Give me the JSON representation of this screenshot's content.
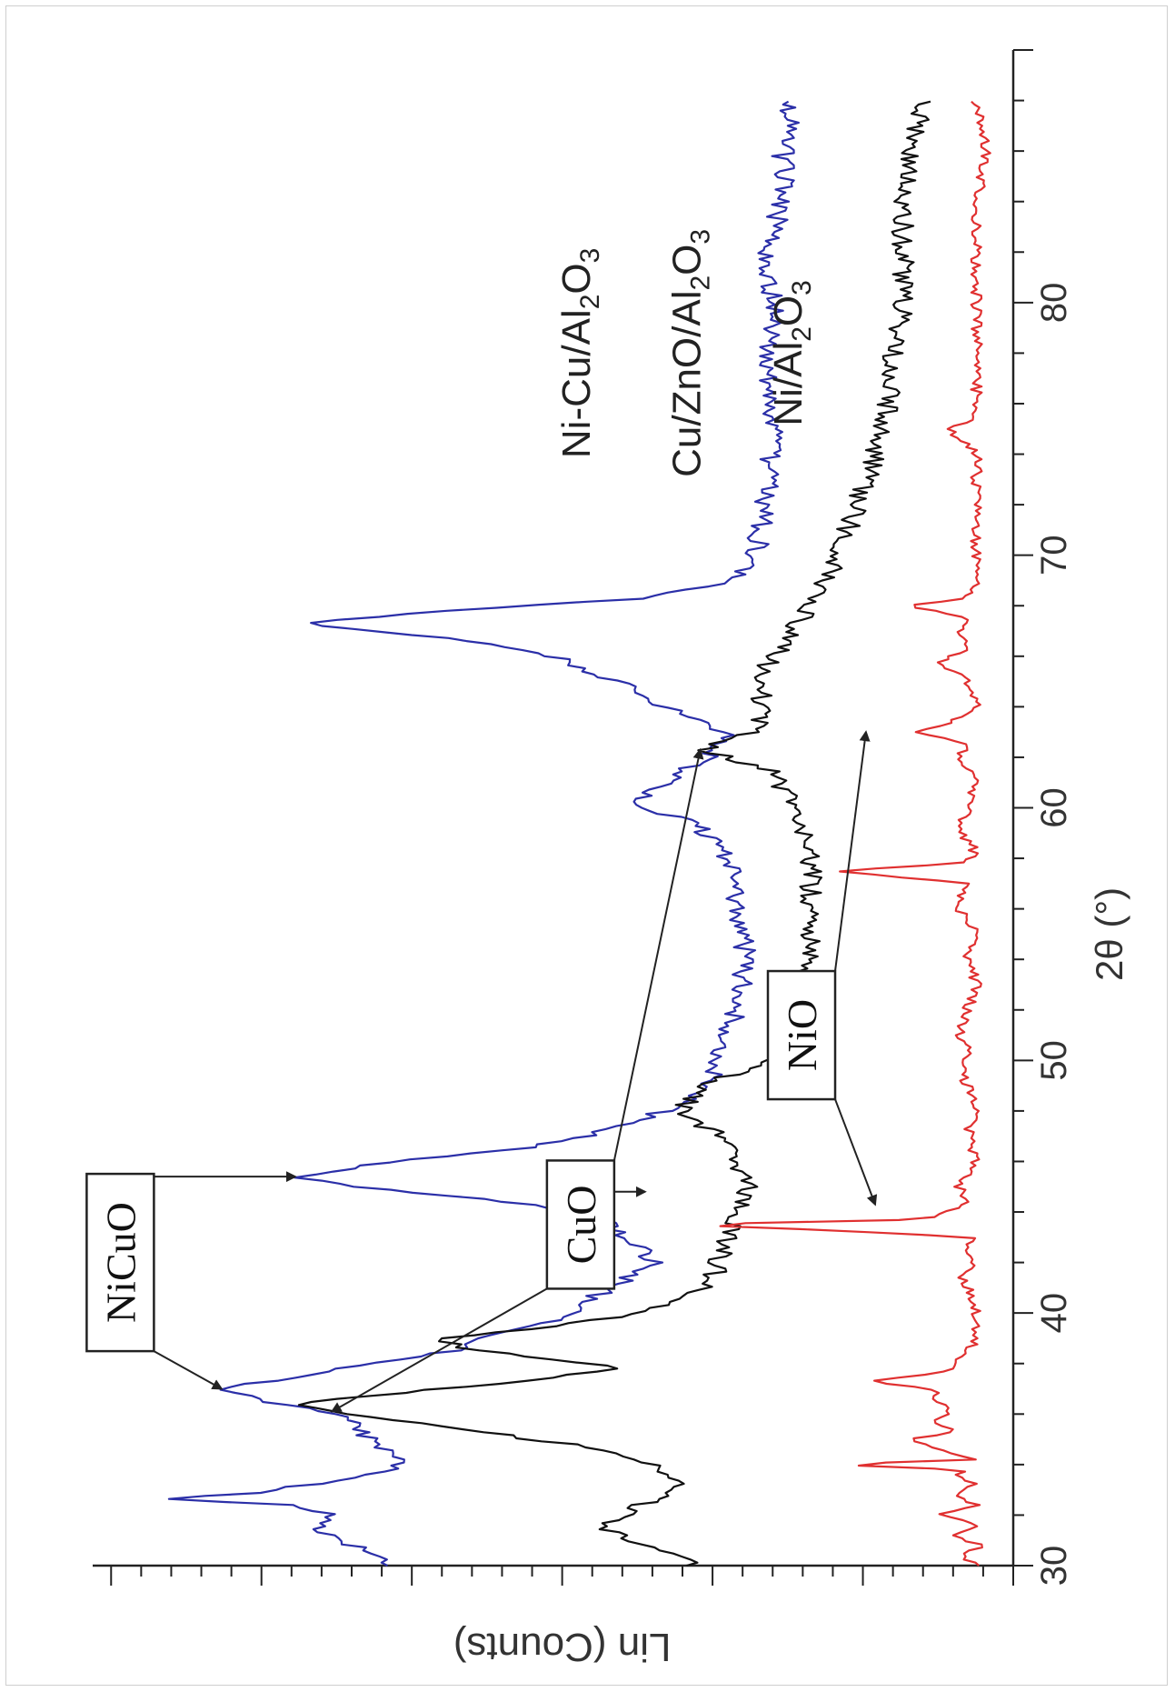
{
  "chart_data": {
    "type": "line",
    "orientation": "rotated-90-clockwise",
    "xlabel": "2θ (°)",
    "ylabel": "Lin (Counts)",
    "xlim": [
      30,
      90
    ],
    "x_ticks": [
      30,
      40,
      50,
      60,
      70,
      80
    ],
    "grid": false,
    "series": [
      {
        "name": "Ni-Cu/Al2O3",
        "color": "#2b2fa8",
        "points": [
          [
            30,
            0.68
          ],
          [
            30.5,
            0.7
          ],
          [
            31,
            0.73
          ],
          [
            31.5,
            0.76
          ],
          [
            32,
            0.74
          ],
          [
            32.4,
            0.79
          ],
          [
            32.6,
            0.92
          ],
          [
            32.9,
            0.82
          ],
          [
            33.5,
            0.71
          ],
          [
            34,
            0.66
          ],
          [
            34.5,
            0.68
          ],
          [
            35,
            0.7
          ],
          [
            35.5,
            0.71
          ],
          [
            36,
            0.73
          ],
          [
            36.5,
            0.82
          ],
          [
            37,
            0.86
          ],
          [
            37.5,
            0.77
          ],
          [
            38,
            0.7
          ],
          [
            38.5,
            0.61
          ],
          [
            39,
            0.57
          ],
          [
            39.5,
            0.52
          ],
          [
            40,
            0.48
          ],
          [
            41,
            0.44
          ],
          [
            41.5,
            0.41
          ],
          [
            42,
            0.39
          ],
          [
            43,
            0.42
          ],
          [
            44,
            0.46
          ],
          [
            44.5,
            0.58
          ],
          [
            45,
            0.72
          ],
          [
            45.4,
            0.78
          ],
          [
            46,
            0.68
          ],
          [
            46.5,
            0.54
          ],
          [
            47,
            0.46
          ],
          [
            48,
            0.38
          ],
          [
            49,
            0.33
          ],
          [
            50,
            0.32
          ],
          [
            52,
            0.3
          ],
          [
            54,
            0.29
          ],
          [
            56,
            0.3
          ],
          [
            58,
            0.31
          ],
          [
            59.5,
            0.35
          ],
          [
            60,
            0.41
          ],
          [
            61,
            0.38
          ],
          [
            62,
            0.33
          ],
          [
            63,
            0.31
          ],
          [
            64,
            0.38
          ],
          [
            65,
            0.43
          ],
          [
            66,
            0.5
          ],
          [
            66.8,
            0.63
          ],
          [
            67.3,
            0.78
          ],
          [
            67.8,
            0.62
          ],
          [
            68.3,
            0.4
          ],
          [
            69,
            0.31
          ],
          [
            70,
            0.28
          ],
          [
            72,
            0.27
          ],
          [
            75,
            0.26
          ],
          [
            78,
            0.27
          ],
          [
            80,
            0.26
          ],
          [
            82,
            0.27
          ],
          [
            84,
            0.25
          ],
          [
            86,
            0.25
          ],
          [
            88,
            0.24
          ]
        ]
      },
      {
        "name": "Cu/ZnO/Al2O3",
        "color": "#111111",
        "points": [
          [
            30,
            0.35
          ],
          [
            30.5,
            0.37
          ],
          [
            31,
            0.41
          ],
          [
            31.5,
            0.45
          ],
          [
            32,
            0.42
          ],
          [
            32.5,
            0.4
          ],
          [
            33,
            0.36
          ],
          [
            33.5,
            0.37
          ],
          [
            34,
            0.39
          ],
          [
            34.5,
            0.43
          ],
          [
            35,
            0.52
          ],
          [
            35.5,
            0.62
          ],
          [
            36,
            0.73
          ],
          [
            36.4,
            0.79
          ],
          [
            36.8,
            0.68
          ],
          [
            37.3,
            0.54
          ],
          [
            37.8,
            0.43
          ],
          [
            38.2,
            0.5
          ],
          [
            38.6,
            0.6
          ],
          [
            39,
            0.62
          ],
          [
            39.5,
            0.5
          ],
          [
            40,
            0.4
          ],
          [
            41,
            0.33
          ],
          [
            42,
            0.32
          ],
          [
            43,
            0.31
          ],
          [
            44,
            0.3
          ],
          [
            45,
            0.29
          ],
          [
            46,
            0.3
          ],
          [
            47,
            0.32
          ],
          [
            48,
            0.36
          ],
          [
            49,
            0.34
          ],
          [
            50,
            0.26
          ],
          [
            52,
            0.24
          ],
          [
            54,
            0.22
          ],
          [
            56,
            0.22
          ],
          [
            58,
            0.22
          ],
          [
            60,
            0.24
          ],
          [
            61.5,
            0.26
          ],
          [
            62.3,
            0.34
          ],
          [
            63,
            0.28
          ],
          [
            64,
            0.27
          ],
          [
            65,
            0.28
          ],
          [
            66,
            0.26
          ],
          [
            67,
            0.24
          ],
          [
            68,
            0.22
          ],
          [
            70,
            0.19
          ],
          [
            72,
            0.17
          ],
          [
            75,
            0.14
          ],
          [
            78,
            0.13
          ],
          [
            80,
            0.12
          ],
          [
            82,
            0.12
          ],
          [
            84,
            0.12
          ],
          [
            86,
            0.11
          ],
          [
            88,
            0.1
          ]
        ]
      },
      {
        "name": "Ni/Al2O3",
        "color": "#e03030",
        "points": [
          [
            30,
            0.04
          ],
          [
            30.5,
            0.06
          ],
          [
            30.8,
            0.03
          ],
          [
            31.2,
            0.07
          ],
          [
            31.6,
            0.04
          ],
          [
            32,
            0.08
          ],
          [
            32.4,
            0.04
          ],
          [
            32.8,
            0.06
          ],
          [
            33.2,
            0.04
          ],
          [
            33.5,
            0.06
          ],
          [
            33.8,
            0.05
          ],
          [
            34,
            0.2
          ],
          [
            34.2,
            0.04
          ],
          [
            34.6,
            0.08
          ],
          [
            35,
            0.12
          ],
          [
            35.3,
            0.06
          ],
          [
            35.6,
            0.09
          ],
          [
            36,
            0.07
          ],
          [
            36.5,
            0.08
          ],
          [
            37,
            0.09
          ],
          [
            37.3,
            0.16
          ],
          [
            37.6,
            0.08
          ],
          [
            38,
            0.06
          ],
          [
            38.5,
            0.05
          ],
          [
            39,
            0.04
          ],
          [
            40,
            0.04
          ],
          [
            41,
            0.05
          ],
          [
            41.5,
            0.06
          ],
          [
            42,
            0.04
          ],
          [
            42.5,
            0.05
          ],
          [
            43,
            0.04
          ],
          [
            43.3,
            0.21
          ],
          [
            43.5,
            0.37
          ],
          [
            43.7,
            0.1
          ],
          [
            44,
            0.07
          ],
          [
            44.5,
            0.05
          ],
          [
            45,
            0.06
          ],
          [
            46,
            0.04
          ],
          [
            47,
            0.05
          ],
          [
            48,
            0.04
          ],
          [
            49,
            0.05
          ],
          [
            50,
            0.06
          ],
          [
            50.5,
            0.04
          ],
          [
            51,
            0.06
          ],
          [
            52,
            0.05
          ],
          [
            53,
            0.04
          ],
          [
            54,
            0.05
          ],
          [
            55,
            0.04
          ],
          [
            56,
            0.06
          ],
          [
            57,
            0.05
          ],
          [
            57.5,
            0.2
          ],
          [
            57.8,
            0.05
          ],
          [
            58.5,
            0.04
          ],
          [
            59,
            0.06
          ],
          [
            60,
            0.05
          ],
          [
            61,
            0.04
          ],
          [
            62,
            0.06
          ],
          [
            62.5,
            0.05
          ],
          [
            63,
            0.1
          ],
          [
            63.5,
            0.06
          ],
          [
            64,
            0.04
          ],
          [
            65,
            0.05
          ],
          [
            65.8,
            0.08
          ],
          [
            66.2,
            0.05
          ],
          [
            67,
            0.06
          ],
          [
            67.5,
            0.05
          ],
          [
            68,
            0.11
          ],
          [
            68.3,
            0.05
          ],
          [
            69,
            0.04
          ],
          [
            70,
            0.04
          ],
          [
            72,
            0.04
          ],
          [
            74,
            0.04
          ],
          [
            75,
            0.07
          ],
          [
            75.5,
            0.04
          ],
          [
            78,
            0.04
          ],
          [
            80,
            0.04
          ],
          [
            82,
            0.04
          ],
          [
            84,
            0.04
          ],
          [
            86,
            0.03
          ],
          [
            88,
            0.04
          ]
        ]
      }
    ],
    "series_labels": [
      {
        "html": "Ni-Cu/Al<sub>2</sub>O<sub>3</sub>",
        "x": 78,
        "y": 0.46
      },
      {
        "html": "Cu/ZnO/Al<sub>2</sub>O<sub>3</sub>",
        "x": 78,
        "y": 0.34
      },
      {
        "html": "Ni/Al<sub>2</sub>O<sub>3</sub>",
        "x": 78,
        "y": 0.23
      }
    ],
    "annotations": [
      {
        "label": "NiCuO",
        "box_center": [
          42,
          0.97
        ],
        "arrows_to": [
          [
            37,
            0.86
          ],
          [
            45.4,
            0.78
          ]
        ]
      },
      {
        "label": "CuO",
        "box_center": [
          43.5,
          0.47
        ],
        "arrows_to": [
          [
            44.8,
            0.4
          ],
          [
            36.1,
            0.74
          ],
          [
            62.3,
            0.34
          ]
        ]
      },
      {
        "label": "NiO",
        "box_center": [
          51,
          0.23
        ],
        "arrows_to": [
          [
            44.3,
            0.15
          ],
          [
            63,
            0.16
          ]
        ]
      }
    ]
  }
}
